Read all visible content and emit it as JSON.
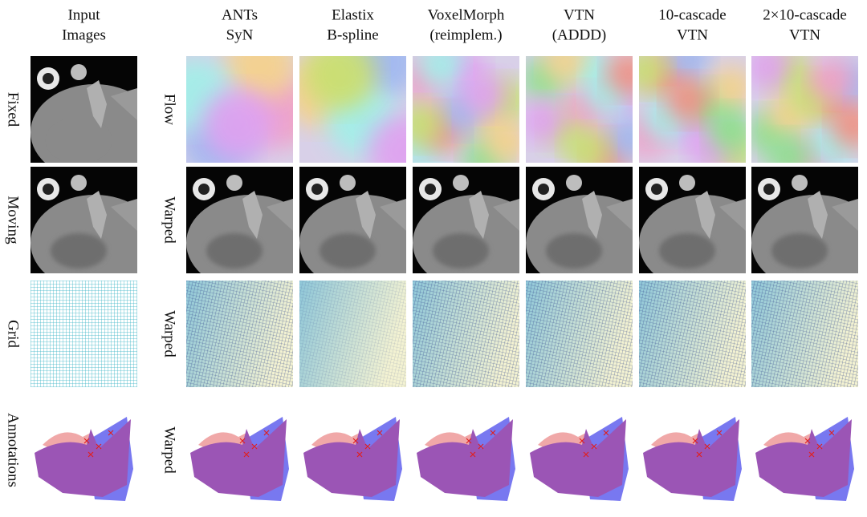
{
  "columns": [
    {
      "title": [
        "Input",
        "Images"
      ]
    },
    {
      "title": [
        "ANTs",
        "SyN"
      ]
    },
    {
      "title": [
        "Elastix",
        "B-spline"
      ]
    },
    {
      "title": [
        "VoxelMorph",
        "(reimplem.)"
      ]
    },
    {
      "title": [
        "VTN",
        "(ADDD)"
      ]
    },
    {
      "title": [
        "10-cascade",
        "VTN"
      ]
    },
    {
      "title": [
        "2×10-cascade",
        "VTN"
      ]
    }
  ],
  "rows": [
    {
      "input": "Fixed",
      "output": "Flow"
    },
    {
      "input": "Moving",
      "output": "Warped"
    },
    {
      "input": "Grid",
      "output": "Warped"
    },
    {
      "input": "Annotations",
      "output": "Warped"
    }
  ]
}
